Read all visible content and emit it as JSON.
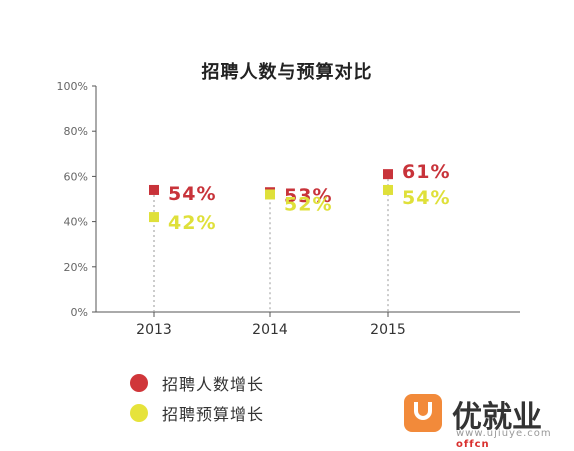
{
  "chart_data": {
    "type": "scatter",
    "title": "招聘人数与预算对比",
    "categories": [
      "2013",
      "2014",
      "2015"
    ],
    "series": [
      {
        "name": "招聘人数增长",
        "values": [
          54,
          53,
          61
        ],
        "labels": [
          "54%",
          "53%",
          "61%"
        ],
        "color": "#c8333a"
      },
      {
        "name": "招聘预算增长",
        "values": [
          42,
          52,
          54
        ],
        "labels": [
          "42%",
          "52%",
          "54%"
        ],
        "color": "#dfe03a"
      }
    ],
    "ylim": [
      0,
      100
    ],
    "yticks": [
      0,
      20,
      40,
      60,
      80,
      100
    ],
    "ytick_labels": [
      "0%",
      "20%",
      "40%",
      "60%",
      "80%",
      "100%"
    ],
    "legend": "bottom-left",
    "grid": false
  },
  "legend": {
    "items": [
      {
        "label": "招聘人数增长",
        "color": "#d0363a"
      },
      {
        "label": "招聘预算增长",
        "color": "#e6e33b"
      }
    ]
  },
  "brand": {
    "name": "优就业",
    "url": "www.ujiuye.com",
    "url_overlay": "offcn"
  }
}
